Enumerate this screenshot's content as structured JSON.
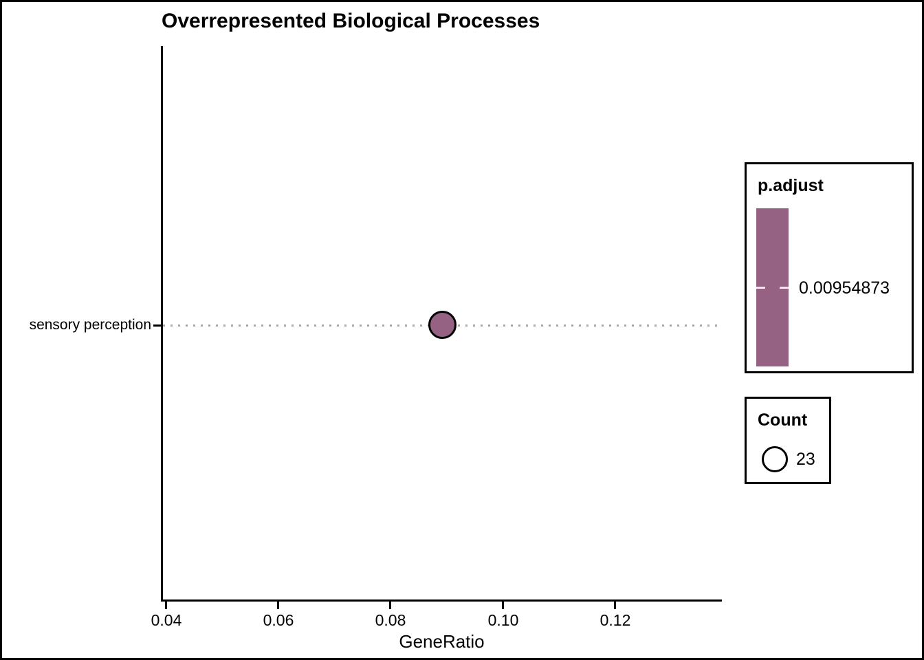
{
  "chart_data": {
    "type": "scatter",
    "title": "Overrepresented Biological Processes",
    "xlabel": "GeneRatio",
    "ylabel": "",
    "categories": [
      "sensory perception"
    ],
    "points": [
      {
        "category": "sensory perception",
        "gene_ratio": 0.0891,
        "count": 23,
        "p_adjust": 0.00954873
      }
    ],
    "x_ticks": [
      "0.04",
      "0.06",
      "0.08",
      "0.10",
      "0.12"
    ],
    "xlim": [
      0.039,
      0.139
    ],
    "grid": "dotted horizontal line per category",
    "legend_position": "right",
    "point_color": "#966283",
    "point_stroke": "#000000",
    "gridline_color": "#a9a9a9"
  },
  "legend_padjust": {
    "title": "p.adjust",
    "tick_label": "0.00954873",
    "bar_color": "#966283"
  },
  "legend_count": {
    "title": "Count",
    "size_label": "23"
  }
}
